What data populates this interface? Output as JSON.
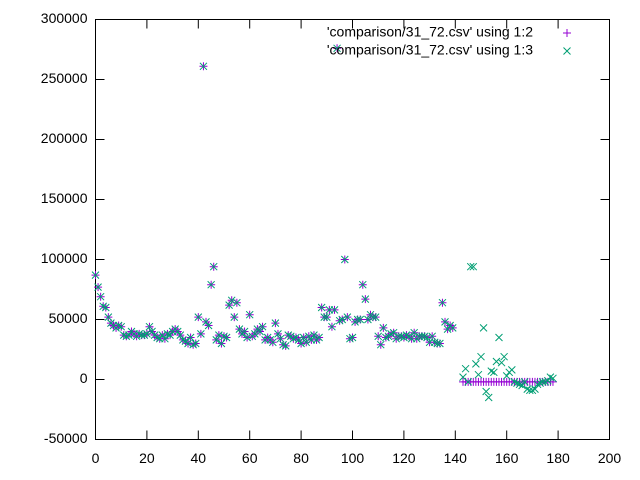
{
  "chart_data": {
    "type": "scatter",
    "x": [
      0,
      1,
      2,
      3,
      4,
      5,
      6,
      7,
      8,
      9,
      10,
      11,
      12,
      13,
      14,
      15,
      16,
      17,
      18,
      19,
      20,
      21,
      22,
      23,
      24,
      25,
      26,
      27,
      28,
      29,
      30,
      31,
      32,
      33,
      34,
      35,
      36,
      37,
      38,
      39,
      40,
      41,
      42,
      43,
      44,
      45,
      46,
      47,
      48,
      49,
      50,
      51,
      52,
      53,
      54,
      55,
      56,
      57,
      58,
      59,
      60,
      61,
      62,
      63,
      64,
      65,
      66,
      67,
      68,
      69,
      70,
      71,
      72,
      73,
      74,
      75,
      76,
      77,
      78,
      79,
      80,
      81,
      82,
      83,
      84,
      85,
      86,
      87,
      88,
      89,
      90,
      91,
      92,
      93,
      94,
      95,
      96,
      97,
      98,
      99,
      100,
      101,
      102,
      103,
      104,
      105,
      106,
      107,
      108,
      109,
      110,
      111,
      112,
      113,
      114,
      115,
      116,
      117,
      118,
      119,
      120,
      121,
      122,
      123,
      124,
      125,
      126,
      127,
      128,
      129,
      130,
      131,
      132,
      133,
      134,
      135,
      136,
      137,
      138,
      139,
      143,
      144,
      145,
      146,
      147,
      148,
      149,
      150,
      151,
      152,
      153,
      154,
      155,
      156,
      157,
      158,
      159,
      160,
      161,
      162,
      163,
      164,
      165,
      166,
      167,
      168,
      169,
      170,
      171,
      172,
      173,
      174,
      175,
      176,
      177,
      178
    ],
    "series": [
      {
        "name": "'comparison/31_72.csv' using 1:2",
        "color": "#9400d3",
        "marker": "plus",
        "values": [
          87000,
          77000,
          69000,
          61000,
          60000,
          52000,
          47000,
          45000,
          43000,
          45000,
          44000,
          37000,
          36000,
          37000,
          40000,
          38000,
          36000,
          38000,
          37000,
          37000,
          38000,
          44000,
          40000,
          37000,
          35000,
          34000,
          37000,
          34000,
          38000,
          37000,
          40000,
          42000,
          40000,
          37000,
          33000,
          32000,
          30000,
          35000,
          29000,
          30000,
          52000,
          38000,
          261000,
          48000,
          45000,
          79000,
          94000,
          33000,
          37000,
          30000,
          36000,
          35000,
          62000,
          66000,
          52000,
          64000,
          42000,
          38000,
          40000,
          35000,
          54000,
          36000,
          38000,
          42000,
          40000,
          44000,
          33000,
          35000,
          33000,
          31000,
          47000,
          38000,
          34000,
          29000,
          28000,
          37000,
          36000,
          34000,
          35000,
          33000,
          30000,
          35000,
          31000,
          36000,
          33000,
          37000,
          33000,
          35000,
          60000,
          52000,
          52000,
          58000,
          44000,
          58000,
          276000,
          49000,
          50000,
          100000,
          52000,
          34000,
          35000,
          48000,
          50000,
          50000,
          79000,
          67000,
          50000,
          54000,
          52000,
          52000,
          36000,
          29000,
          43000,
          35000,
          36000,
          38000,
          39000,
          34000,
          36000,
          36000,
          35000,
          37000,
          36000,
          34000,
          39000,
          34000,
          36000,
          36000,
          36000,
          35000,
          31000,
          36000,
          31000,
          30000,
          30000,
          64000,
          48000,
          42000,
          45000,
          43000,
          -2000,
          -2000,
          -2000,
          -2000,
          -2000,
          -2000,
          -2000,
          -2000,
          -2000,
          -2000,
          -2000,
          -2000,
          -2000,
          -2000,
          -2000,
          -2000,
          -2000,
          -2000,
          -2000,
          -2000,
          -2000,
          -2000,
          -2000,
          -2000,
          -2000,
          -2000,
          -2000,
          -2000,
          -2000,
          -2000,
          -2000,
          -2000,
          -2000,
          -2000,
          -2000,
          -2000
        ]
      },
      {
        "name": "'comparison/31_72.csv' using 1:3",
        "color": "#009e73",
        "marker": "cross",
        "values": [
          87000,
          77000,
          69000,
          61000,
          60000,
          52000,
          47000,
          45000,
          43000,
          45000,
          44000,
          37000,
          36000,
          37000,
          40000,
          38000,
          36000,
          38000,
          37000,
          37000,
          38000,
          44000,
          40000,
          37000,
          35000,
          34000,
          37000,
          34000,
          38000,
          37000,
          40000,
          42000,
          40000,
          37000,
          33000,
          32000,
          30000,
          35000,
          29000,
          30000,
          52000,
          38000,
          261000,
          48000,
          45000,
          79000,
          94000,
          33000,
          37000,
          30000,
          36000,
          35000,
          62000,
          66000,
          52000,
          64000,
          42000,
          38000,
          40000,
          35000,
          54000,
          36000,
          38000,
          42000,
          40000,
          44000,
          33000,
          35000,
          33000,
          31000,
          47000,
          38000,
          34000,
          29000,
          28000,
          37000,
          36000,
          34000,
          35000,
          33000,
          30000,
          35000,
          31000,
          36000,
          33000,
          37000,
          33000,
          35000,
          60000,
          52000,
          52000,
          58000,
          44000,
          58000,
          276000,
          49000,
          50000,
          100000,
          52000,
          34000,
          35000,
          48000,
          50000,
          50000,
          79000,
          67000,
          50000,
          54000,
          52000,
          52000,
          36000,
          29000,
          43000,
          35000,
          36000,
          38000,
          39000,
          34000,
          36000,
          36000,
          35000,
          37000,
          36000,
          34000,
          39000,
          34000,
          36000,
          36000,
          36000,
          35000,
          31000,
          36000,
          31000,
          30000,
          30000,
          64000,
          48000,
          42000,
          45000,
          43000,
          2000,
          9000,
          -2000,
          94000,
          94000,
          13000,
          4000,
          19000,
          43000,
          -10000,
          -15000,
          7000,
          6000,
          15000,
          35000,
          14000,
          19000,
          3000,
          6000,
          8000,
          -2000,
          -3000,
          -4000,
          -5000,
          -2000,
          -8000,
          -9000,
          -9000,
          -8000,
          -4000,
          -3000,
          -2000,
          -2000,
          -1000,
          2000,
          1000
        ]
      }
    ],
    "xlim": [
      0,
      200
    ],
    "xticks": [
      0,
      20,
      40,
      60,
      80,
      100,
      120,
      140,
      160,
      180,
      200
    ],
    "ylim": [
      -50000,
      300000
    ],
    "yticks": [
      -50000,
      0,
      50000,
      100000,
      150000,
      200000,
      250000,
      300000
    ],
    "grid": false,
    "legend": "top-right"
  }
}
